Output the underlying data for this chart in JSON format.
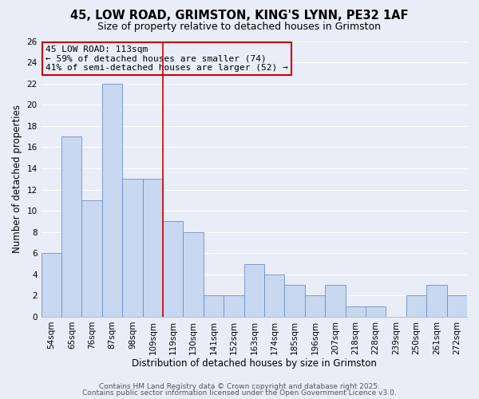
{
  "title": "45, LOW ROAD, GRIMSTON, KING'S LYNN, PE32 1AF",
  "subtitle": "Size of property relative to detached houses in Grimston",
  "xlabel": "Distribution of detached houses by size in Grimston",
  "ylabel": "Number of detached properties",
  "categories": [
    "54sqm",
    "65sqm",
    "76sqm",
    "87sqm",
    "98sqm",
    "109sqm",
    "119sqm",
    "130sqm",
    "141sqm",
    "152sqm",
    "163sqm",
    "174sqm",
    "185sqm",
    "196sqm",
    "207sqm",
    "218sqm",
    "228sqm",
    "239sqm",
    "250sqm",
    "261sqm",
    "272sqm"
  ],
  "values": [
    6,
    17,
    11,
    22,
    13,
    13,
    9,
    8,
    2,
    2,
    5,
    4,
    3,
    2,
    3,
    1,
    1,
    0,
    2,
    3,
    2
  ],
  "bar_color": "#c8d8f0",
  "bar_edge_color": "#7090c0",
  "bar_width": 1.0,
  "ylim": [
    0,
    26
  ],
  "yticks": [
    0,
    2,
    4,
    6,
    8,
    10,
    12,
    14,
    16,
    18,
    20,
    22,
    24,
    26
  ],
  "vline_x": 5.5,
  "vline_color": "#cc0000",
  "annotation_box_text": "45 LOW ROAD: 113sqm\n← 59% of detached houses are smaller (74)\n41% of semi-detached houses are larger (52) →",
  "annotation_box_color": "#cc0000",
  "background_color": "#e8edf8",
  "grid_color": "#ffffff",
  "footer_line1": "Contains HM Land Registry data © Crown copyright and database right 2025.",
  "footer_line2": "Contains public sector information licensed under the Open Government Licence v3.0.",
  "title_fontsize": 10.5,
  "subtitle_fontsize": 9,
  "axis_label_fontsize": 8.5,
  "tick_fontsize": 7.5,
  "annotation_fontsize": 8,
  "footer_fontsize": 6.5
}
